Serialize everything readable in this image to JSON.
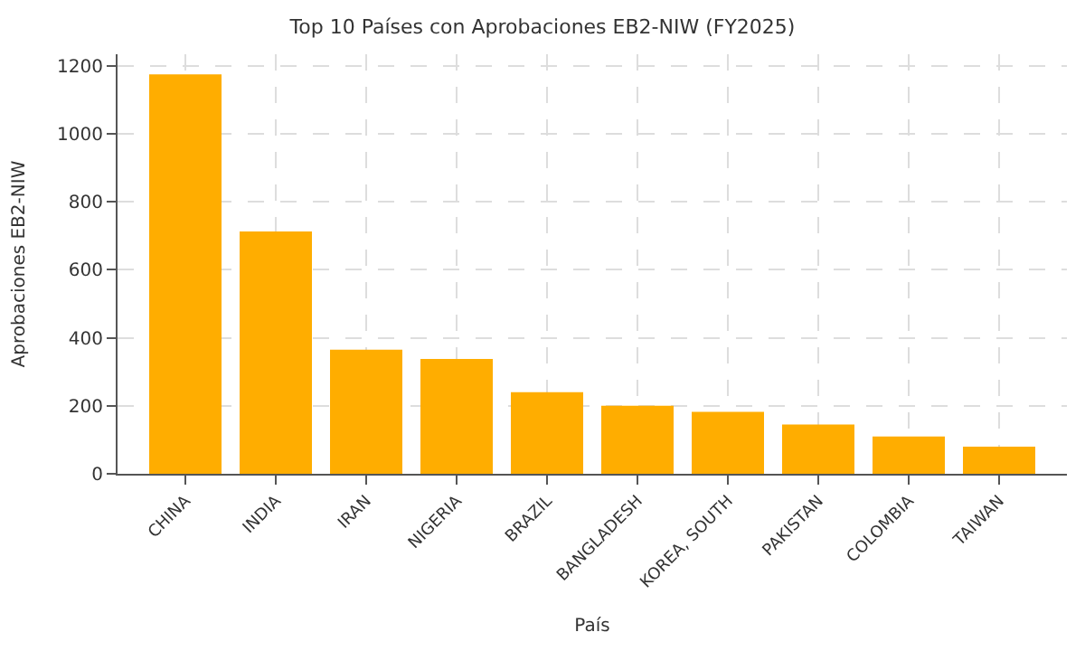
{
  "chart_data": {
    "type": "bar",
    "title": "Top 10 Países con Aprobaciones EB2-NIW (FY2025)",
    "xlabel": "País",
    "ylabel": "Aprobaciones EB2-NIW",
    "categories": [
      "CHINA",
      "INDIA",
      "IRAN",
      "NIGERIA",
      "BRAZIL",
      "BANGLADESH",
      "KOREA, SOUTH",
      "PAKISTAN",
      "COLOMBIA",
      "TAIWAN"
    ],
    "values": [
      1175,
      713,
      365,
      338,
      240,
      200,
      182,
      145,
      110,
      80
    ],
    "color": "#ffad00",
    "ylim": [
      0,
      1234
    ],
    "yticks": [
      0,
      200,
      400,
      600,
      800,
      1000,
      1200
    ],
    "grid": true
  }
}
